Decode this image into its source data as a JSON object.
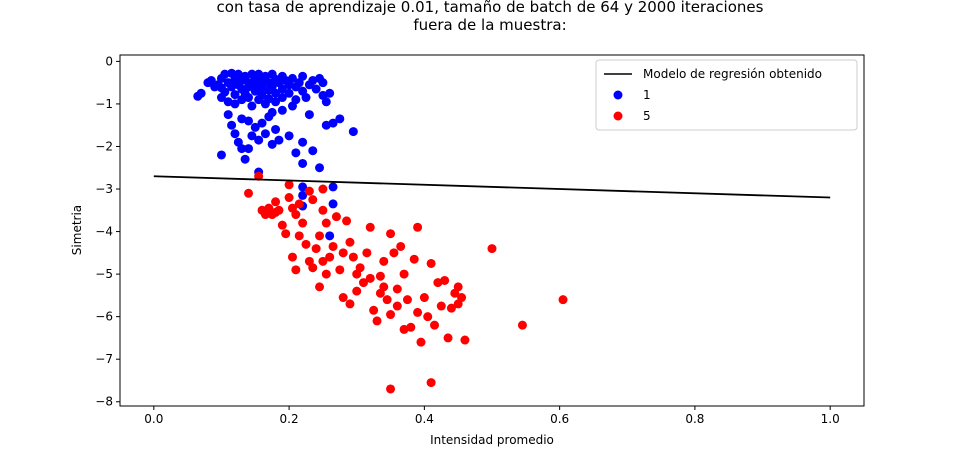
{
  "chart_data": {
    "type": "scatter",
    "title_lines": [
      "con tasa de aprendizaje 0.01, tamaño de batch de 64 y 2000 iteraciones",
      "fuera de la muestra:"
    ],
    "xlabel": "Intensidad promedio",
    "ylabel": "Simetria",
    "xlim": [
      -0.05,
      1.05
    ],
    "ylim": [
      -8.1,
      0.15
    ],
    "x_ticks": [
      0.0,
      0.2,
      0.4,
      0.6,
      0.8,
      1.0
    ],
    "x_tick_labels": [
      "0.0",
      "0.2",
      "0.4",
      "0.6",
      "0.8",
      "1.0"
    ],
    "y_ticks": [
      0,
      -1,
      -2,
      -3,
      -4,
      -5,
      -6,
      -7,
      -8
    ],
    "y_tick_labels": [
      "0",
      "−1",
      "−2",
      "−3",
      "−4",
      "−5",
      "−6",
      "−7",
      "−8"
    ],
    "grid": false,
    "legend_position": "top-right",
    "line": {
      "name": "Modelo de regresión obtenido",
      "color": "#000000",
      "x": [
        0.0,
        1.0
      ],
      "y": [
        -2.7,
        -3.2
      ]
    },
    "series": [
      {
        "name": "1",
        "color": "#0000ff",
        "points": [
          [
            0.065,
            -0.82
          ],
          [
            0.07,
            -0.75
          ],
          [
            0.08,
            -0.5
          ],
          [
            0.085,
            -0.45
          ],
          [
            0.09,
            -0.6
          ],
          [
            0.095,
            -0.55
          ],
          [
            0.1,
            -0.4
          ],
          [
            0.1,
            -0.62
          ],
          [
            0.1,
            -0.85
          ],
          [
            0.105,
            -0.3
          ],
          [
            0.105,
            -0.72
          ],
          [
            0.11,
            -0.5
          ],
          [
            0.11,
            -0.95
          ],
          [
            0.115,
            -0.28
          ],
          [
            0.115,
            -0.6
          ],
          [
            0.12,
            -0.42
          ],
          [
            0.12,
            -0.78
          ],
          [
            0.12,
            -1.0
          ],
          [
            0.125,
            -0.3
          ],
          [
            0.125,
            -0.55
          ],
          [
            0.13,
            -0.45
          ],
          [
            0.13,
            -0.65
          ],
          [
            0.13,
            -0.9
          ],
          [
            0.135,
            -0.35
          ],
          [
            0.135,
            -0.75
          ],
          [
            0.14,
            -0.5
          ],
          [
            0.14,
            -0.6
          ],
          [
            0.14,
            -0.85
          ],
          [
            0.145,
            -0.3
          ],
          [
            0.145,
            -1.05
          ],
          [
            0.15,
            -0.4
          ],
          [
            0.15,
            -0.55
          ],
          [
            0.15,
            -0.7
          ],
          [
            0.155,
            -0.9
          ],
          [
            0.155,
            -0.3
          ],
          [
            0.16,
            -0.45
          ],
          [
            0.16,
            -0.62
          ],
          [
            0.16,
            -0.8
          ],
          [
            0.165,
            -0.35
          ],
          [
            0.165,
            -1.0
          ],
          [
            0.17,
            -0.5
          ],
          [
            0.17,
            -0.68
          ],
          [
            0.17,
            -0.88
          ],
          [
            0.175,
            -0.3
          ],
          [
            0.175,
            -0.6
          ],
          [
            0.18,
            -0.42
          ],
          [
            0.18,
            -0.75
          ],
          [
            0.18,
            -0.95
          ],
          [
            0.185,
            -0.5
          ],
          [
            0.19,
            -0.35
          ],
          [
            0.19,
            -0.65
          ],
          [
            0.19,
            -0.85
          ],
          [
            0.195,
            -0.45
          ],
          [
            0.2,
            -0.55
          ],
          [
            0.2,
            -0.75
          ],
          [
            0.205,
            -0.4
          ],
          [
            0.21,
            -0.6
          ],
          [
            0.21,
            -0.9
          ],
          [
            0.215,
            -0.5
          ],
          [
            0.22,
            -0.7
          ],
          [
            0.22,
            -0.35
          ],
          [
            0.225,
            -0.85
          ],
          [
            0.23,
            -0.55
          ],
          [
            0.235,
            -0.45
          ],
          [
            0.24,
            -0.65
          ],
          [
            0.245,
            -0.4
          ],
          [
            0.25,
            -0.8
          ],
          [
            0.255,
            -0.95
          ],
          [
            0.26,
            -0.75
          ],
          [
            0.25,
            -0.5
          ],
          [
            0.11,
            -1.25
          ],
          [
            0.115,
            -1.5
          ],
          [
            0.12,
            -1.7
          ],
          [
            0.125,
            -1.9
          ],
          [
            0.1,
            -2.2
          ],
          [
            0.13,
            -2.05
          ],
          [
            0.135,
            -2.3
          ],
          [
            0.14,
            -1.4
          ],
          [
            0.145,
            -1.75
          ],
          [
            0.15,
            -1.55
          ],
          [
            0.155,
            -1.85
          ],
          [
            0.16,
            -1.45
          ],
          [
            0.165,
            -1.7
          ],
          [
            0.17,
            -1.3
          ],
          [
            0.175,
            -1.95
          ],
          [
            0.18,
            -1.6
          ],
          [
            0.185,
            -1.85
          ],
          [
            0.19,
            -1.15
          ],
          [
            0.2,
            -1.75
          ],
          [
            0.21,
            -2.15
          ],
          [
            0.22,
            -1.9
          ],
          [
            0.22,
            -2.4
          ],
          [
            0.23,
            -1.25
          ],
          [
            0.235,
            -2.1
          ],
          [
            0.245,
            -2.5
          ],
          [
            0.255,
            -1.5
          ],
          [
            0.265,
            -1.45
          ],
          [
            0.275,
            -1.35
          ],
          [
            0.295,
            -1.65
          ],
          [
            0.22,
            -2.95
          ],
          [
            0.22,
            -3.15
          ],
          [
            0.22,
            -3.4
          ],
          [
            0.265,
            -2.95
          ],
          [
            0.265,
            -3.35
          ],
          [
            0.26,
            -4.1
          ],
          [
            0.155,
            -2.6
          ],
          [
            0.13,
            -1.35
          ],
          [
            0.14,
            -2.05
          ],
          [
            0.175,
            -1.2
          ],
          [
            0.205,
            -1.05
          ]
        ]
      },
      {
        "name": "5",
        "color": "#ff0000",
        "points": [
          [
            0.14,
            -3.1
          ],
          [
            0.155,
            -2.7
          ],
          [
            0.16,
            -3.5
          ],
          [
            0.165,
            -3.6
          ],
          [
            0.17,
            -3.45
          ],
          [
            0.175,
            -3.6
          ],
          [
            0.18,
            -3.55
          ],
          [
            0.185,
            -3.5
          ],
          [
            0.19,
            -3.85
          ],
          [
            0.195,
            -4.05
          ],
          [
            0.2,
            -2.9
          ],
          [
            0.2,
            -3.2
          ],
          [
            0.205,
            -3.45
          ],
          [
            0.21,
            -3.6
          ],
          [
            0.215,
            -4.1
          ],
          [
            0.22,
            -3.8
          ],
          [
            0.225,
            -4.3
          ],
          [
            0.23,
            -3.05
          ],
          [
            0.23,
            -4.7
          ],
          [
            0.235,
            -4.85
          ],
          [
            0.24,
            -4.4
          ],
          [
            0.245,
            -5.3
          ],
          [
            0.245,
            -4.1
          ],
          [
            0.25,
            -3.5
          ],
          [
            0.25,
            -4.7
          ],
          [
            0.255,
            -3.8
          ],
          [
            0.26,
            -4.6
          ],
          [
            0.265,
            -4.35
          ],
          [
            0.27,
            -3.65
          ],
          [
            0.275,
            -4.9
          ],
          [
            0.28,
            -4.5
          ],
          [
            0.28,
            -5.55
          ],
          [
            0.285,
            -3.75
          ],
          [
            0.29,
            -4.25
          ],
          [
            0.295,
            -4.6
          ],
          [
            0.3,
            -5.0
          ],
          [
            0.3,
            -5.4
          ],
          [
            0.305,
            -4.85
          ],
          [
            0.31,
            -5.2
          ],
          [
            0.315,
            -4.5
          ],
          [
            0.32,
            -3.9
          ],
          [
            0.32,
            -5.1
          ],
          [
            0.325,
            -5.85
          ],
          [
            0.33,
            -6.1
          ],
          [
            0.335,
            -5.45
          ],
          [
            0.34,
            -4.7
          ],
          [
            0.34,
            -5.3
          ],
          [
            0.345,
            -5.6
          ],
          [
            0.35,
            -4.05
          ],
          [
            0.35,
            -5.95
          ],
          [
            0.355,
            -4.5
          ],
          [
            0.36,
            -5.35
          ],
          [
            0.36,
            -5.75
          ],
          [
            0.365,
            -4.35
          ],
          [
            0.37,
            -5.0
          ],
          [
            0.375,
            -5.6
          ],
          [
            0.38,
            -6.25
          ],
          [
            0.385,
            -4.65
          ],
          [
            0.39,
            -3.9
          ],
          [
            0.39,
            -5.9
          ],
          [
            0.395,
            -6.6
          ],
          [
            0.4,
            -5.55
          ],
          [
            0.405,
            -6.0
          ],
          [
            0.41,
            -4.75
          ],
          [
            0.415,
            -6.2
          ],
          [
            0.42,
            -5.2
          ],
          [
            0.425,
            -5.75
          ],
          [
            0.43,
            -5.15
          ],
          [
            0.435,
            -6.5
          ],
          [
            0.44,
            -5.8
          ],
          [
            0.445,
            -5.45
          ],
          [
            0.45,
            -5.3
          ],
          [
            0.45,
            -5.7
          ],
          [
            0.455,
            -5.55
          ],
          [
            0.46,
            -6.55
          ],
          [
            0.35,
            -7.7
          ],
          [
            0.41,
            -7.55
          ],
          [
            0.5,
            -4.4
          ],
          [
            0.545,
            -6.2
          ],
          [
            0.605,
            -5.6
          ],
          [
            0.25,
            -3.0
          ],
          [
            0.21,
            -4.9
          ],
          [
            0.255,
            -5.0
          ],
          [
            0.29,
            -5.7
          ],
          [
            0.335,
            -5.05
          ],
          [
            0.37,
            -6.3
          ],
          [
            0.215,
            -3.35
          ],
          [
            0.235,
            -3.25
          ],
          [
            0.18,
            -3.3
          ],
          [
            0.205,
            -4.6
          ]
        ]
      }
    ]
  }
}
